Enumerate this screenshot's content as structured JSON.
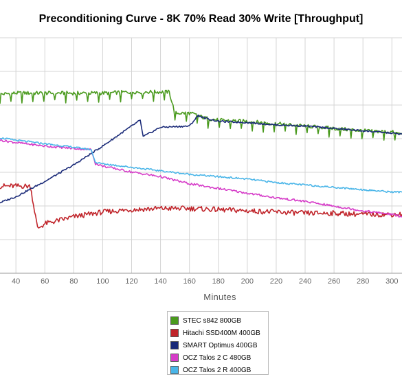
{
  "chart_data": {
    "type": "line",
    "title": "Preconditioning Curve - 8K 70% Read 30% Write [Throughput]",
    "xlabel": "Minutes",
    "ylabel": "",
    "x_ticks": [
      40,
      60,
      80,
      100,
      120,
      140,
      160,
      180,
      200,
      220,
      240,
      260,
      280,
      300
    ],
    "xlim": [
      29,
      307
    ],
    "ylim": [
      0,
      100
    ],
    "grid": true,
    "legend_position": "bottom-center",
    "series": [
      {
        "name": "STEC s842 800GB",
        "color": "#4a9a1e",
        "x": [
          29,
          40,
          60,
          80,
          100,
          120,
          140,
          146,
          150,
          160,
          166,
          170,
          180,
          200,
          220,
          240,
          260,
          280,
          300,
          307
        ],
        "y": [
          76,
          76.5,
          76.5,
          76.5,
          76.5,
          77,
          77,
          77,
          68,
          68,
          67,
          66,
          65,
          64.5,
          63.5,
          62.5,
          61.5,
          60.5,
          60,
          59
        ]
      },
      {
        "name": "Hitachi SSD400M 400GB",
        "color": "#c0242a",
        "x": [
          29,
          40,
          50,
          55,
          60,
          80,
          100,
          120,
          140,
          160,
          180,
          200,
          220,
          240,
          260,
          280,
          300,
          307
        ],
        "y": [
          37,
          37,
          37,
          19,
          21,
          24,
          26,
          27,
          27.5,
          27.5,
          27,
          26.5,
          26,
          25.5,
          25.5,
          25,
          25,
          25
        ]
      },
      {
        "name": "SMART Optimus 400GB",
        "color": "#1a2a78",
        "x": [
          29,
          40,
          60,
          80,
          100,
          120,
          126,
          128,
          140,
          160,
          166,
          170,
          180,
          200,
          220,
          240,
          260,
          280,
          300,
          307
        ],
        "y": [
          30,
          32.5,
          39,
          46,
          54,
          62.5,
          65,
          58,
          62,
          62.5,
          67,
          66,
          64.5,
          64,
          63,
          62.5,
          61.5,
          60.5,
          59.5,
          59
        ]
      },
      {
        "name": "OCZ Talos 2 C 480GB",
        "color": "#d63cc8",
        "x": [
          29,
          40,
          60,
          80,
          92,
          95,
          100,
          120,
          140,
          160,
          180,
          200,
          220,
          240,
          260,
          280,
          300,
          307
        ],
        "y": [
          56.5,
          55.5,
          54,
          53,
          52.5,
          46.5,
          45.5,
          43,
          41,
          38,
          36,
          34,
          32,
          30.5,
          28.5,
          26.5,
          25,
          24
        ]
      },
      {
        "name": "OCZ Talos 2 R 400GB",
        "color": "#49b5e8",
        "x": [
          29,
          40,
          60,
          80,
          92,
          95,
          100,
          120,
          140,
          160,
          180,
          200,
          220,
          240,
          260,
          280,
          300,
          307
        ],
        "y": [
          57.5,
          56.5,
          55,
          53.5,
          52.5,
          47,
          46.5,
          45,
          43.5,
          42,
          41,
          40,
          38.5,
          37.5,
          36.5,
          35.5,
          34.5,
          34.5
        ]
      }
    ]
  }
}
